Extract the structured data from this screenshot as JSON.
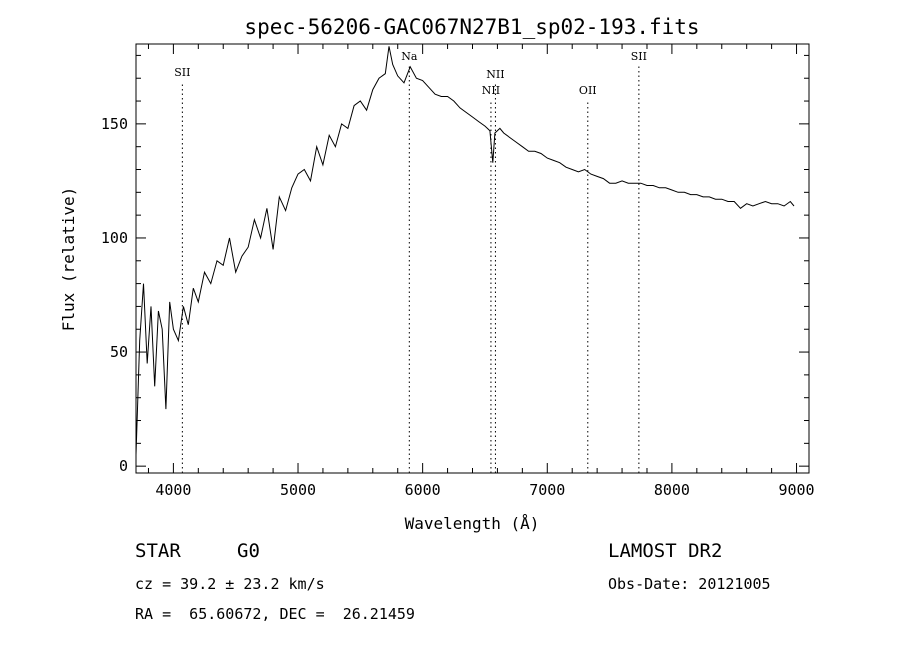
{
  "chart_data": {
    "type": "line",
    "title": "spec-56206-GAC067N27B1_sp02-193.fits",
    "xlabel": "Wavelength (Å)",
    "ylabel": "Flux (relative)",
    "xlim": [
      3700,
      9100
    ],
    "ylim": [
      -3,
      185
    ],
    "x_ticks": [
      4000,
      5000,
      6000,
      7000,
      8000,
      9000
    ],
    "y_ticks": [
      0,
      50,
      100,
      150
    ],
    "grid": false,
    "line_color": "#000000",
    "line_markers": [
      {
        "label": "SII",
        "x": 4072,
        "label_y": 171
      },
      {
        "label": "Na",
        "x": 5893,
        "label_y": 178
      },
      {
        "label": "NII",
        "x": 6548,
        "label_y": 163
      },
      {
        "label": "NII",
        "x": 6584,
        "label_y": 170
      },
      {
        "label": "OII",
        "x": 7325,
        "label_y": 163
      },
      {
        "label": "SII",
        "x": 7735,
        "label_y": 178
      }
    ],
    "series": [
      {
        "x": [
          3700,
          3730,
          3760,
          3790,
          3820,
          3850,
          3880,
          3910,
          3940,
          3970,
          4000,
          4040,
          4080,
          4120,
          4160,
          4200,
          4250,
          4300,
          4350,
          4400,
          4450,
          4500,
          4550,
          4600,
          4650,
          4700,
          4750,
          4800,
          4850,
          4900,
          4950,
          5000,
          5050,
          5100,
          5150,
          5200,
          5250,
          5300,
          5350,
          5400,
          5450,
          5500,
          5550,
          5600,
          5650,
          5700,
          5730,
          5760,
          5800,
          5850,
          5900,
          5950,
          6000,
          6050,
          6100,
          6150,
          6200,
          6250,
          6300,
          6350,
          6400,
          6450,
          6500,
          6540,
          6563,
          6580,
          6620,
          6650,
          6700,
          6750,
          6800,
          6850,
          6900,
          6950,
          7000,
          7050,
          7100,
          7150,
          7200,
          7250,
          7300,
          7350,
          7400,
          7450,
          7500,
          7550,
          7600,
          7650,
          7700,
          7750,
          7800,
          7850,
          7900,
          7950,
          8000,
          8050,
          8100,
          8150,
          8200,
          8250,
          8300,
          8350,
          8400,
          8450,
          8500,
          8550,
          8600,
          8650,
          8700,
          8750,
          8800,
          8850,
          8900,
          8950,
          8980
        ],
        "y": [
          5,
          55,
          80,
          45,
          70,
          35,
          68,
          60,
          25,
          72,
          60,
          55,
          70,
          62,
          78,
          72,
          85,
          80,
          90,
          88,
          100,
          85,
          92,
          96,
          108,
          100,
          113,
          95,
          118,
          112,
          122,
          128,
          130,
          125,
          140,
          132,
          145,
          140,
          150,
          148,
          158,
          160,
          156,
          165,
          170,
          172,
          184,
          176,
          171,
          168,
          175,
          170,
          169,
          166,
          163,
          162,
          162,
          160,
          157,
          155,
          153,
          151,
          149,
          147,
          133,
          146,
          148,
          146,
          144,
          142,
          140,
          138,
          138,
          137,
          135,
          134,
          133,
          131,
          130,
          129,
          130,
          128,
          127,
          126,
          124,
          124,
          125,
          124,
          124,
          124,
          123,
          123,
          122,
          122,
          121,
          120,
          120,
          119,
          119,
          118,
          118,
          117,
          117,
          116,
          116,
          113,
          115,
          114,
          115,
          116,
          115,
          115,
          114,
          116,
          114
        ]
      }
    ]
  },
  "info": {
    "object_type": "STAR",
    "subclass": "G0",
    "survey": "LAMOST DR2",
    "cz": "cz = 39.2 ± 23.2 km/s",
    "obs_date": "Obs-Date: 20121005",
    "coords": "RA =  65.60672, DEC =  26.21459"
  }
}
